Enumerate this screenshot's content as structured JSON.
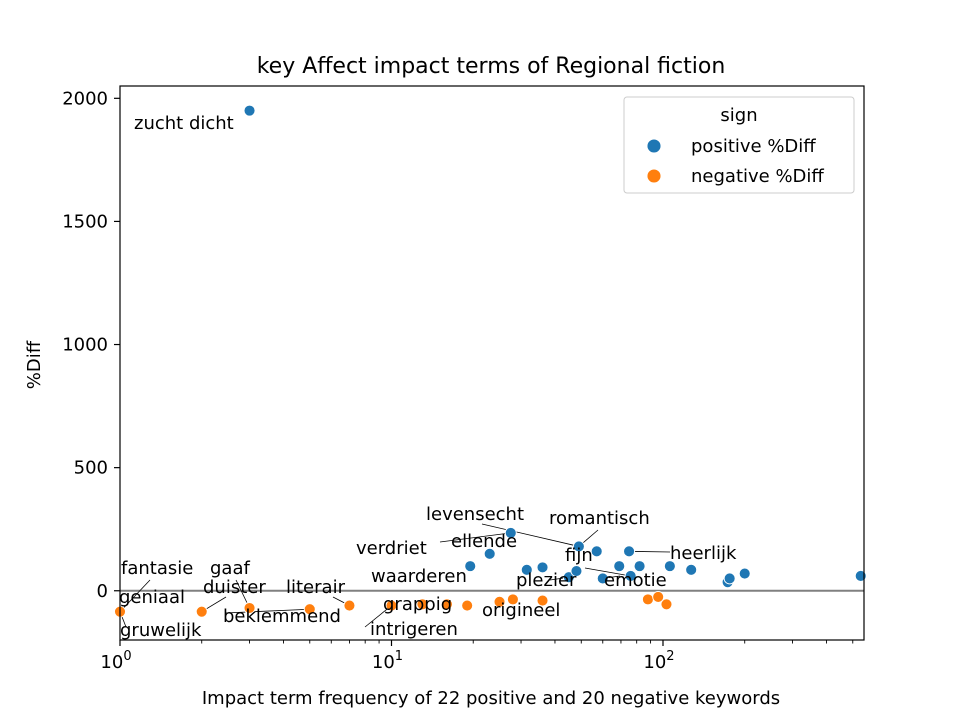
{
  "chart_data": {
    "type": "scatter",
    "title": "key Affect impact terms of Regional fiction",
    "xlabel": "Impact term frequency of 22 positive and 20 negative keywords",
    "ylabel": "%Diff",
    "xscale": "log",
    "xlim": [
      1,
      550
    ],
    "ylim": [
      -200,
      2050
    ],
    "xticks": [
      {
        "value": 1,
        "base": "10",
        "exp": "0"
      },
      {
        "value": 10,
        "base": "10",
        "exp": "1"
      },
      {
        "value": 100,
        "base": "10",
        "exp": "2"
      }
    ],
    "yticks": [
      0,
      500,
      1000,
      1500,
      2000
    ],
    "baseline": 0,
    "legend": {
      "title": "sign",
      "placement": "upper right",
      "entries": [
        {
          "label": "positive %Diff",
          "color": "#1f77b4"
        },
        {
          "label": "negative %Diff",
          "color": "#ff7f0e"
        }
      ]
    },
    "series": [
      {
        "name": "positive %Diff",
        "color": "#1f77b4",
        "points": [
          [
            3,
            1950
          ],
          [
            19.5,
            100
          ],
          [
            23,
            150
          ],
          [
            27.5,
            235
          ],
          [
            31.5,
            85
          ],
          [
            36,
            95
          ],
          [
            45,
            55
          ],
          [
            48,
            80
          ],
          [
            49,
            180
          ],
          [
            57,
            160
          ],
          [
            60,
            50
          ],
          [
            69,
            100
          ],
          [
            75,
            160
          ],
          [
            76,
            60
          ],
          [
            82,
            100
          ],
          [
            106,
            100
          ],
          [
            127,
            85
          ],
          [
            173,
            35
          ],
          [
            176,
            50
          ],
          [
            200,
            70
          ],
          [
            535,
            60
          ]
        ]
      },
      {
        "name": "negative %Diff",
        "color": "#ff7f0e",
        "points": [
          [
            1,
            -85
          ],
          [
            2,
            -85
          ],
          [
            3,
            -70
          ],
          [
            5,
            -75
          ],
          [
            7,
            -60
          ],
          [
            10,
            -60
          ],
          [
            13,
            -55
          ],
          [
            16,
            -55
          ],
          [
            19,
            -60
          ],
          [
            25,
            -45
          ],
          [
            28,
            -35
          ],
          [
            36,
            -40
          ],
          [
            88,
            -35
          ],
          [
            96,
            -25
          ],
          [
            103,
            -55
          ]
        ]
      }
    ],
    "annotations": [
      {
        "text": "zucht dicht",
        "x": 3,
        "y": 1950
      },
      {
        "text": "levensecht",
        "x": 49,
        "y": 180
      },
      {
        "text": "romantisch",
        "x": 49,
        "y": 180
      },
      {
        "text": "ellende",
        "x": 23,
        "y": 150
      },
      {
        "text": "verdriet",
        "x": 27.5,
        "y": 235
      },
      {
        "text": "fijn",
        "x": 76,
        "y": 60
      },
      {
        "text": "heerlijk",
        "x": 75,
        "y": 160
      },
      {
        "text": "fantasie",
        "x": 1,
        "y": -85
      },
      {
        "text": "gaaf",
        "x": 3,
        "y": -70
      },
      {
        "text": "duister",
        "x": 2,
        "y": -85
      },
      {
        "text": "literair",
        "x": 7,
        "y": -60
      },
      {
        "text": "waarderen",
        "x": 16,
        "y": -55
      },
      {
        "text": "plezier",
        "x": 45,
        "y": 55
      },
      {
        "text": "emotie",
        "x": 60,
        "y": 50
      },
      {
        "text": "geniaal",
        "x": 1,
        "y": -85
      },
      {
        "text": "beklemmend",
        "x": 5,
        "y": -75
      },
      {
        "text": "grappig",
        "x": 10,
        "y": -60
      },
      {
        "text": "origineel",
        "x": 28,
        "y": -35
      },
      {
        "text": "gruwelijk",
        "x": 1,
        "y": -85
      },
      {
        "text": "intrigeren",
        "x": 10,
        "y": -60
      }
    ]
  }
}
